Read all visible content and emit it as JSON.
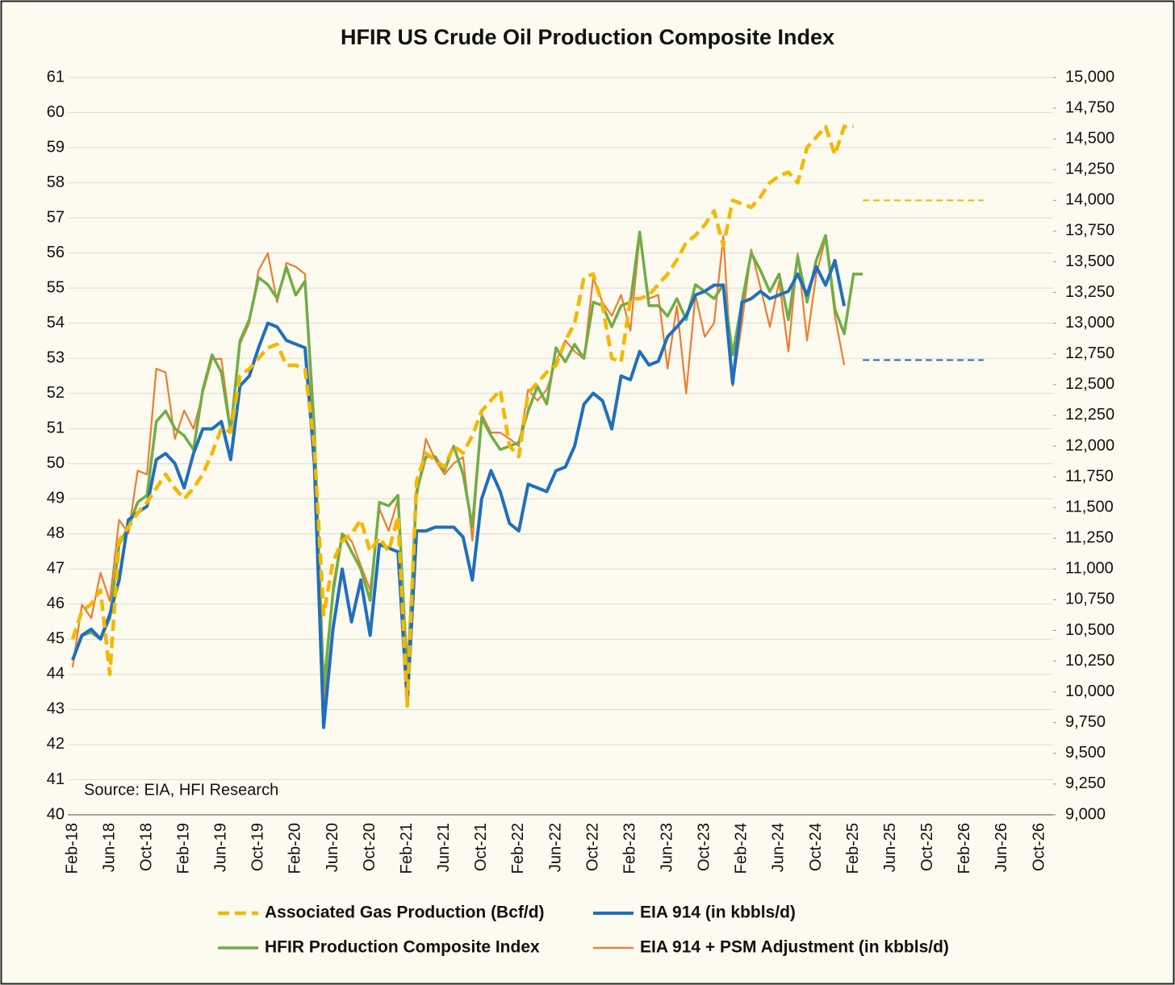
{
  "chart_data": {
    "type": "line",
    "title": "HFIR US Crude Oil Production Composite Index",
    "annotation": "Source: EIA, HFI Research",
    "categories": [
      "Feb-18",
      null,
      null,
      null,
      "Jun-18",
      null,
      null,
      null,
      "Oct-18",
      null,
      null,
      null,
      "Feb-19",
      null,
      null,
      null,
      "Jun-19",
      null,
      null,
      null,
      "Oct-19",
      null,
      null,
      null,
      "Feb-20",
      null,
      null,
      null,
      "Jun-20",
      null,
      null,
      null,
      "Oct-20",
      null,
      null,
      null,
      "Feb-21",
      null,
      null,
      null,
      "Jun-21",
      null,
      null,
      null,
      "Oct-21",
      null,
      null,
      null,
      "Feb-22",
      null,
      null,
      null,
      "Jun-22",
      null,
      null,
      null,
      "Oct-22",
      null,
      null,
      null,
      "Feb-23",
      null,
      null,
      null,
      "Jun-23",
      null,
      null,
      null,
      "Oct-23",
      null,
      null,
      null,
      "Feb-24",
      null,
      null,
      null,
      "Jun-24",
      null,
      null,
      null,
      "Oct-24",
      null,
      null,
      null,
      "Feb-25",
      null,
      null,
      null,
      "Jun-25",
      null,
      null,
      null,
      "Oct-25",
      null,
      null,
      null,
      "Feb-26",
      null,
      null,
      null,
      "Jun-26",
      null,
      null,
      null,
      "Oct-26"
    ],
    "ylim": [
      40,
      61
    ],
    "yticks": [
      40,
      41,
      42,
      43,
      44,
      45,
      46,
      47,
      48,
      49,
      50,
      51,
      52,
      53,
      54,
      55,
      56,
      57,
      58,
      59,
      60,
      61
    ],
    "y2lim": [
      9000,
      15000
    ],
    "y2ticks": [
      {
        "value": 9000,
        "label": "9,000"
      },
      {
        "value": 9250,
        "label": "9,250"
      },
      {
        "value": 9500,
        "label": "9,500"
      },
      {
        "value": 9750,
        "label": "9,750"
      },
      {
        "value": 10000,
        "label": "10,000"
      },
      {
        "value": 10250,
        "label": "10,250"
      },
      {
        "value": 10500,
        "label": "10,500"
      },
      {
        "value": 10750,
        "label": "10,750"
      },
      {
        "value": 11000,
        "label": "11,000"
      },
      {
        "value": 11250,
        "label": "11,250"
      },
      {
        "value": 11500,
        "label": "11,500"
      },
      {
        "value": 11750,
        "label": "11,750"
      },
      {
        "value": 12000,
        "label": "12,000"
      },
      {
        "value": 12250,
        "label": "12,250"
      },
      {
        "value": 12500,
        "label": "12,500"
      },
      {
        "value": 12750,
        "label": "12,750"
      },
      {
        "value": 13000,
        "label": "13,000"
      },
      {
        "value": 13250,
        "label": "13,250"
      },
      {
        "value": 13500,
        "label": "13,500"
      },
      {
        "value": 13750,
        "label": "13,750"
      },
      {
        "value": 14000,
        "label": "14,000"
      },
      {
        "value": 14250,
        "label": "14,250"
      },
      {
        "value": 14500,
        "label": "14,500"
      },
      {
        "value": 14750,
        "label": "14,750"
      },
      {
        "value": 15000,
        "label": "15,000"
      }
    ],
    "grid": true,
    "legend": "bottom",
    "series": [
      {
        "name": "Associated Gas Production (Bcf/d)",
        "color": "#f5b700",
        "dashed": true,
        "width": 4.5,
        "values": [
          45.0,
          45.8,
          46.0,
          46.4,
          44.0,
          47.8,
          48.2,
          48.6,
          48.9,
          49.3,
          49.7,
          49.3,
          49.0,
          49.3,
          49.7,
          50.3,
          51.0,
          50.9,
          52.5,
          52.7,
          53.0,
          53.3,
          53.4,
          52.8,
          52.8,
          52.7,
          50.5,
          45.7,
          47.2,
          47.8,
          48.0,
          48.4,
          47.5,
          47.9,
          47.5,
          48.5,
          43.1,
          49.5,
          50.3,
          50.1,
          49.9,
          50.5,
          50.3,
          50.8,
          51.5,
          51.8,
          52.1,
          50.5,
          50.2,
          52.0,
          52.3,
          52.6,
          52.8,
          53.5,
          54.0,
          55.3,
          55.4,
          54.5,
          53.0,
          52.9,
          54.7,
          54.7,
          54.8,
          55.1,
          55.4,
          55.8,
          56.3,
          56.5,
          56.8,
          57.2,
          56.2,
          57.5,
          57.4,
          57.3,
          57.6,
          58.0,
          58.2,
          58.3,
          58.0,
          59.0,
          59.3,
          59.6,
          58.8,
          59.6,
          59.6,
          null,
          null,
          null,
          null,
          null,
          null,
          null,
          null,
          null,
          null,
          null,
          null,
          null,
          null,
          null,
          null,
          null,
          null,
          null,
          null
        ]
      },
      {
        "name": "EIA 914 (in kbbls/d)",
        "color": "#1f6fbd",
        "axis": "y2",
        "width": 4,
        "values": [
          10260,
          10460,
          10510,
          10430,
          10630,
          10910,
          11400,
          11460,
          11510,
          11890,
          11940,
          11860,
          11660,
          11940,
          12140,
          12140,
          12200,
          11890,
          12490,
          12570,
          12800,
          13000,
          12970,
          12860,
          12830,
          12800,
          11860,
          9710,
          10510,
          11000,
          10570,
          10910,
          10460,
          11200,
          11170,
          11140,
          9910,
          11310,
          11310,
          11340,
          11340,
          11340,
          11260,
          10910,
          11570,
          11800,
          11630,
          11370,
          11310,
          11690,
          11660,
          11630,
          11800,
          11830,
          12000,
          12340,
          12430,
          12370,
          12140,
          12570,
          12540,
          12770,
          12660,
          12690,
          12890,
          12970,
          13060,
          13230,
          13260,
          13310,
          13310,
          12510,
          13170,
          13200,
          13260,
          13200,
          13230,
          13260,
          13400,
          13230,
          13460,
          13310,
          13510,
          13140,
          null,
          null,
          null,
          null,
          null,
          null,
          null,
          null,
          null,
          null,
          null,
          null,
          null,
          null,
          null,
          null,
          null,
          null,
          null,
          null,
          null
        ]
      },
      {
        "name": "HFIR Production Composite Index",
        "color": "#70ad47",
        "width": 3.5,
        "values": [
          44.4,
          45.1,
          45.2,
          45.0,
          45.6,
          47.7,
          48.2,
          48.9,
          49.1,
          51.2,
          51.5,
          51.0,
          50.8,
          50.4,
          52.1,
          53.1,
          52.6,
          50.9,
          53.5,
          54.1,
          55.3,
          55.1,
          54.7,
          55.6,
          54.8,
          55.2,
          51.0,
          43.6,
          46.3,
          48.0,
          47.5,
          47.0,
          46.1,
          48.9,
          48.8,
          49.1,
          43.9,
          49.2,
          50.2,
          50.2,
          49.8,
          50.5,
          49.7,
          48.2,
          51.3,
          50.8,
          50.4,
          50.5,
          50.6,
          51.5,
          52.2,
          51.7,
          53.3,
          52.9,
          53.4,
          53.0,
          54.6,
          54.5,
          53.9,
          54.5,
          54.6,
          56.6,
          54.5,
          54.5,
          54.2,
          54.7,
          54.1,
          55.1,
          54.9,
          54.7,
          55.1,
          53.1,
          54.6,
          56.0,
          55.5,
          54.9,
          55.4,
          54.1,
          55.9,
          54.6,
          55.8,
          56.5,
          54.4,
          53.7,
          55.4,
          55.4,
          null,
          null,
          null,
          null,
          null,
          null,
          null,
          null,
          null,
          null,
          null,
          null,
          null,
          null,
          null,
          null,
          null,
          null,
          null
        ]
      },
      {
        "name": "EIA 914 + PSM Adjustment (in kbbls/d)",
        "color": "#ed7d31",
        "axis": "y2",
        "width": 2.2,
        "values": [
          10200,
          10710,
          10600,
          10970,
          10740,
          11400,
          11290,
          11800,
          11770,
          12630,
          12600,
          12060,
          12290,
          12140,
          12430,
          12710,
          12710,
          12140,
          12830,
          13000,
          13430,
          13570,
          13170,
          13490,
          13460,
          13400,
          11940,
          9860,
          10860,
          11290,
          11230,
          11030,
          10830,
          11490,
          11310,
          11570,
          10200,
          11570,
          12060,
          11890,
          11770,
          11860,
          11910,
          11230,
          12260,
          12110,
          12110,
          12060,
          12000,
          12460,
          12370,
          12460,
          12690,
          12860,
          12770,
          12710,
          13370,
          13170,
          13060,
          13230,
          12940,
          13710,
          13200,
          13230,
          12630,
          13140,
          12430,
          13230,
          12890,
          13000,
          13710,
          12490,
          13000,
          13600,
          13290,
          12970,
          13340,
          12770,
          13570,
          12860,
          13400,
          13690,
          13060,
          12660,
          null,
          null,
          null,
          null,
          null,
          null,
          null,
          null,
          null,
          null,
          null,
          null,
          null,
          null,
          null,
          null,
          null,
          null,
          null,
          null,
          null
        ]
      },
      {
        "color": "#f5b700",
        "axis": "y2",
        "dashed": true,
        "width": 2,
        "values": [
          null,
          null,
          null,
          null,
          null,
          null,
          null,
          null,
          null,
          null,
          null,
          null,
          null,
          null,
          null,
          null,
          null,
          null,
          null,
          null,
          null,
          null,
          null,
          null,
          null,
          null,
          null,
          null,
          null,
          null,
          null,
          null,
          null,
          null,
          null,
          null,
          null,
          null,
          null,
          null,
          null,
          null,
          null,
          null,
          null,
          null,
          null,
          null,
          null,
          null,
          null,
          null,
          null,
          null,
          null,
          null,
          null,
          null,
          null,
          null,
          null,
          null,
          null,
          null,
          null,
          null,
          null,
          null,
          null,
          null,
          null,
          null,
          null,
          null,
          null,
          null,
          null,
          null,
          null,
          null,
          null,
          null,
          null,
          null,
          null,
          14000,
          14000,
          14000,
          14000,
          14000,
          14000,
          14000,
          14000,
          14000,
          14000,
          14000,
          14000,
          14000,
          14000,
          null,
          null,
          null,
          null,
          null,
          null
        ]
      },
      {
        "color": "#1f6fbd",
        "axis": "y2",
        "dashed": true,
        "width": 2,
        "values": [
          null,
          null,
          null,
          null,
          null,
          null,
          null,
          null,
          null,
          null,
          null,
          null,
          null,
          null,
          null,
          null,
          null,
          null,
          null,
          null,
          null,
          null,
          null,
          null,
          null,
          null,
          null,
          null,
          null,
          null,
          null,
          null,
          null,
          null,
          null,
          null,
          null,
          null,
          null,
          null,
          null,
          null,
          null,
          null,
          null,
          null,
          null,
          null,
          null,
          null,
          null,
          null,
          null,
          null,
          null,
          null,
          null,
          null,
          null,
          null,
          null,
          null,
          null,
          null,
          null,
          null,
          null,
          null,
          null,
          null,
          null,
          null,
          null,
          null,
          null,
          null,
          null,
          null,
          null,
          null,
          null,
          null,
          null,
          null,
          null,
          12700,
          12700,
          12700,
          12700,
          12700,
          12700,
          12700,
          12700,
          12700,
          12700,
          12700,
          12700,
          12700,
          12700,
          null,
          null,
          null,
          null,
          null,
          null
        ]
      }
    ]
  }
}
